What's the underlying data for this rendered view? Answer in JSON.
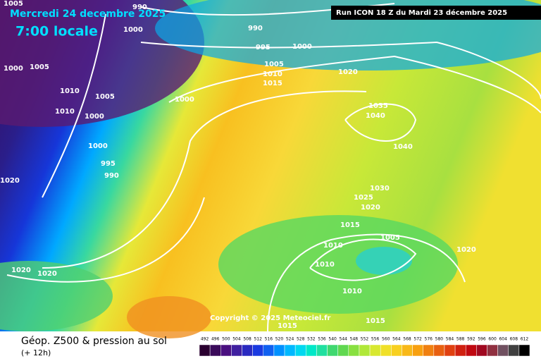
{
  "header": {
    "date": "Mercredi 24 decembre 2025",
    "time": "7:00 locale",
    "run": "Run ICON 18 Z du Mardi 23 décembre 2025"
  },
  "isobars": [
    "1005",
    "990",
    "1000",
    "990",
    "995",
    "1000",
    "1000",
    "1005",
    "1005",
    "1010",
    "1015",
    "1020",
    "1010",
    "1005",
    "1000",
    "1010",
    "1000",
    "1035",
    "1040",
    "1000",
    "1040",
    "995",
    "990",
    "1020",
    "1030",
    "1025",
    "1020",
    "1015",
    "1005",
    "1010",
    "1020",
    "1010",
    "1020",
    "1020",
    "1010",
    "1015",
    "1015"
  ],
  "copyright": "Copyright © 2025 Meteociel.fr",
  "footer": {
    "title": "Géop. Z500 & pression au sol",
    "subtitle": "(+ 12h)"
  },
  "legend": [
    492,
    496,
    500,
    504,
    508,
    512,
    516,
    520,
    524,
    528,
    532,
    536,
    540,
    544,
    548,
    552,
    556,
    560,
    564,
    568,
    572,
    576,
    580,
    584,
    588,
    592,
    596,
    600,
    604,
    608,
    612
  ]
}
